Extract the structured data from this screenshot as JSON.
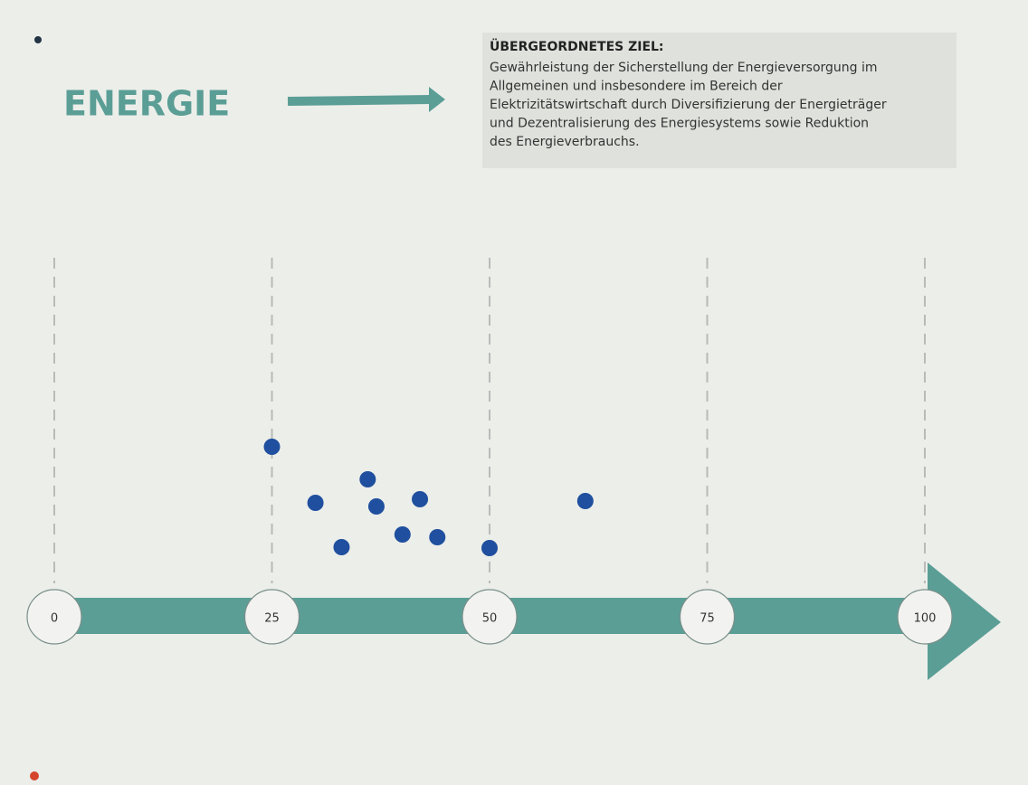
{
  "chart_data": {
    "type": "scatter",
    "title": "ENERGIE",
    "annotation": {
      "heading": "ÜBERGEORDNETES ZIEL:",
      "lines": [
        "Gewährleistung der Sicherstellung der Energieversorgung im",
        "Allgemeinen und insbesondere im Bereich der",
        "Elektrizitätswirtschaft durch Diversifizierung der Energieträger",
        "und Dezentralisierung des Energiesystems sowie Reduktion",
        "des Energieverbrauchs."
      ]
    },
    "x": [
      25,
      30,
      33,
      36,
      37,
      40,
      42,
      44,
      50,
      61
    ],
    "xlim": [
      0,
      100
    ],
    "xticks": [
      0,
      25,
      50,
      75,
      100
    ],
    "color": "#1f4f9e",
    "axis_color": "#5b9e96",
    "grid": true
  }
}
